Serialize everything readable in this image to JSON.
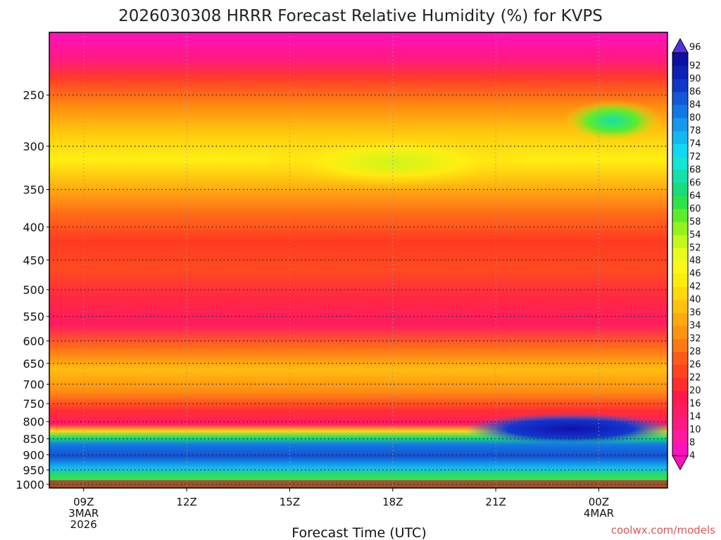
{
  "chart_data": {
    "type": "heatmap",
    "title": "2026030308 HRRR Forecast Relative Humidity (%) for KVPS",
    "xlabel": "Forecast Time (UTC)",
    "ylabel": "",
    "x_ticks": [
      {
        "hour": 9,
        "lines": [
          "09Z",
          "3MAR",
          "2026"
        ]
      },
      {
        "hour": 12,
        "lines": [
          "12Z"
        ]
      },
      {
        "hour": 15,
        "lines": [
          "15Z"
        ]
      },
      {
        "hour": 18,
        "lines": [
          "18Z"
        ]
      },
      {
        "hour": 21,
        "lines": [
          "21Z"
        ]
      },
      {
        "hour": 24,
        "lines": [
          "00Z",
          "4MAR"
        ]
      }
    ],
    "x_range_hours": [
      8,
      26
    ],
    "y_ticks": [
      250,
      300,
      350,
      400,
      450,
      500,
      550,
      600,
      650,
      700,
      750,
      800,
      850,
      900,
      950,
      1000
    ],
    "y_range_hPa": [
      200,
      1013
    ],
    "colorbar_levels": [
      4,
      8,
      10,
      14,
      16,
      20,
      22,
      26,
      28,
      32,
      34,
      36,
      40,
      42,
      46,
      48,
      52,
      54,
      58,
      60,
      64,
      66,
      68,
      72,
      74,
      78,
      80,
      84,
      86,
      90,
      92,
      96
    ],
    "colorbar_colors": [
      "#ff10c0",
      "#ff1aa0",
      "#ff1a80",
      "#ff1a66",
      "#ff1a4a",
      "#ff2d2d",
      "#ff4422",
      "#ff5a1a",
      "#ff7a12",
      "#ff9410",
      "#ffab10",
      "#ffc20e",
      "#ffd80c",
      "#ffec0a",
      "#fdf71a",
      "#e8fb1c",
      "#c2f81c",
      "#94f21e",
      "#5cec2e",
      "#2ee24a",
      "#18dc78",
      "#14e0a8",
      "#12e6d4",
      "#10d8f4",
      "#14b8f0",
      "#1698ec",
      "#1478e4",
      "#1258d8",
      "#1038c8",
      "#0c20b4",
      "#0a10a0",
      "#5530e0"
    ],
    "rh_profile": [
      {
        "p": 210,
        "rh": 6
      },
      {
        "p": 235,
        "rh": 14
      },
      {
        "p": 255,
        "rh": 24
      },
      {
        "p": 275,
        "rh": 34
      },
      {
        "p": 300,
        "rh": 38
      },
      {
        "p": 325,
        "rh": 40
      },
      {
        "p": 350,
        "rh": 34
      },
      {
        "p": 380,
        "rh": 28
      },
      {
        "p": 400,
        "rh": 22
      },
      {
        "p": 440,
        "rh": 24
      },
      {
        "p": 480,
        "rh": 20
      },
      {
        "p": 520,
        "rh": 16
      },
      {
        "p": 550,
        "rh": 14
      },
      {
        "p": 590,
        "rh": 18
      },
      {
        "p": 630,
        "rh": 28
      },
      {
        "p": 680,
        "rh": 36
      },
      {
        "p": 720,
        "rh": 32
      },
      {
        "p": 760,
        "rh": 22
      },
      {
        "p": 800,
        "rh": 14
      },
      {
        "p": 820,
        "rh": 20
      },
      {
        "p": 835,
        "rh": 60
      },
      {
        "p": 850,
        "rh": 84
      },
      {
        "p": 875,
        "rh": 82
      },
      {
        "p": 905,
        "rh": 76
      },
      {
        "p": 935,
        "rh": 62
      },
      {
        "p": 960,
        "rh": 64
      },
      {
        "p": 985,
        "rh": 72
      },
      {
        "p": 1005,
        "rh": 78
      }
    ],
    "notes": [
      "very dry upper levels (4-10%) above 240 hPa",
      "moist layer 840-1000 hPa (60-90%)",
      "pocket of 64-66% near 280 hPa at 00Z"
    ]
  },
  "credit": "coolwx.com/models"
}
